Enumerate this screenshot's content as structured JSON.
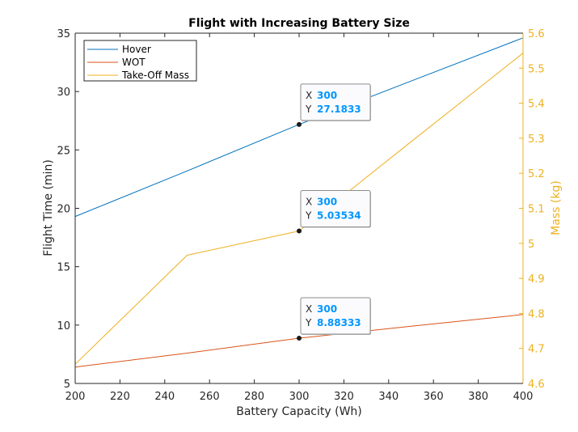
{
  "chart_data": {
    "type": "line",
    "title": "Flight with Increasing Battery Size",
    "xlabel": "Battery Capacity (Wh)",
    "ylabel_left": "Flight Time (min)",
    "ylabel_right": "Mass (kg)",
    "xlim": [
      200,
      400
    ],
    "ylim_left": [
      5,
      35
    ],
    "ylim_right": [
      4.6,
      5.6
    ],
    "xticks": [
      "200",
      "220",
      "240",
      "260",
      "280",
      "300",
      "320",
      "340",
      "360",
      "380",
      "400"
    ],
    "yticks_left": [
      "5",
      "10",
      "15",
      "20",
      "25",
      "30",
      "35"
    ],
    "yticks_right": [
      "4.6",
      "4.7",
      "4.8",
      "4.9",
      "5",
      "5.1",
      "5.2",
      "5.3",
      "5.4",
      "5.5",
      "5.6"
    ],
    "grid": false,
    "legend_position": "top-left",
    "series": [
      {
        "name": "Hover",
        "axis": "left",
        "color": "#0072bd",
        "x": [
          200,
          250,
          300,
          350,
          400
        ],
        "values": [
          19.3,
          23.2,
          27.1833,
          30.9,
          34.6
        ]
      },
      {
        "name": "WOT",
        "axis": "left",
        "color": "#d95319",
        "x": [
          200,
          250,
          300,
          350,
          400
        ],
        "values": [
          6.4,
          7.6,
          8.88333,
          9.9,
          10.9
        ]
      },
      {
        "name": "Take-Off Mass",
        "axis": "right",
        "color": "#edb120",
        "x": [
          200,
          250,
          300,
          350,
          400
        ],
        "values": [
          4.655,
          4.966,
          5.03534,
          5.29,
          5.543
        ]
      }
    ],
    "datatips": [
      {
        "series": "Hover",
        "x_label": "X",
        "y_label": "Y",
        "x_value": "300",
        "y_value": "27.1833",
        "x": 300,
        "y": 27.1833,
        "axis": "left"
      },
      {
        "series": "Take-Off Mass",
        "x_label": "X",
        "y_label": "Y",
        "x_value": "300",
        "y_value": "5.03534",
        "x": 300,
        "y": 5.03534,
        "axis": "right"
      },
      {
        "series": "WOT",
        "x_label": "X",
        "y_label": "Y",
        "x_value": "300",
        "y_value": "8.88333",
        "x": 300,
        "y": 8.88333,
        "axis": "left"
      }
    ]
  }
}
